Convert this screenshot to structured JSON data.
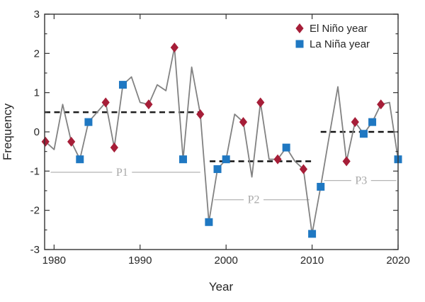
{
  "chart_data": {
    "type": "line",
    "title": "",
    "xlabel": "Year",
    "ylabel": "Frequency",
    "xlim": [
      1978.9,
      2020
    ],
    "ylim": [
      -3,
      3
    ],
    "xticks": [
      1980,
      1990,
      2000,
      2010,
      2020
    ],
    "yticks": [
      3,
      2,
      1,
      0,
      -1,
      -2,
      -3
    ],
    "y_minor_step": 0.5,
    "grid": false,
    "legend_position": "top-right-inside",
    "x": [
      1979,
      1980,
      1981,
      1982,
      1983,
      1984,
      1985,
      1986,
      1987,
      1988,
      1989,
      1990,
      1991,
      1992,
      1993,
      1994,
      1995,
      1996,
      1997,
      1998,
      1999,
      2000,
      2001,
      2002,
      2003,
      2004,
      2005,
      2006,
      2007,
      2008,
      2009,
      2010,
      2011,
      2012,
      2013,
      2014,
      2015,
      2016,
      2017,
      2018,
      2019,
      2020
    ],
    "values": [
      -0.25,
      -0.45,
      0.7,
      -0.25,
      -0.7,
      0.25,
      0.5,
      0.75,
      -0.4,
      1.2,
      1.4,
      0.75,
      0.7,
      1.2,
      1.05,
      2.15,
      -0.7,
      1.65,
      0.45,
      -2.3,
      -0.95,
      -0.7,
      0.45,
      0.25,
      -1.15,
      0.75,
      -0.7,
      -0.7,
      -0.4,
      -0.75,
      -0.95,
      -2.6,
      -1.4,
      -0.1,
      1.15,
      -0.75,
      0.25,
      -0.05,
      0.25,
      0.7,
      0.75,
      -0.7
    ],
    "el_nino_years": [
      1979,
      1982,
      1986,
      1987,
      1991,
      1994,
      1997,
      2002,
      2004,
      2006,
      2009,
      2014,
      2015,
      2018
    ],
    "la_nina_years": [
      1983,
      1984,
      1988,
      1995,
      1998,
      1999,
      2000,
      2007,
      2010,
      2011,
      2016,
      2017,
      2020
    ],
    "periods": [
      {
        "label": "P1",
        "mean": 0.5,
        "mean_from": 1978.9,
        "mean_to": 1997.0,
        "underline_y": -1.03,
        "underline_from": 1979.6,
        "underline_to": 1997.0,
        "label_x": 1987.9
      },
      {
        "label": "P2",
        "mean": -0.75,
        "mean_from": 1998.1,
        "mean_to": 2010.3,
        "underline_y": -1.73,
        "underline_from": 1998.6,
        "underline_to": 2009.7,
        "label_x": 2003.2
      },
      {
        "label": "P3",
        "mean": 0.0,
        "mean_from": 2011.0,
        "mean_to": 2020.0,
        "underline_y": -1.24,
        "underline_from": 2011.4,
        "underline_to": 2019.8,
        "label_x": 2015.7
      }
    ]
  },
  "legend": {
    "items": [
      {
        "label": "El Niño year",
        "marker": "diamond"
      },
      {
        "label": "La Niña year",
        "marker": "square"
      }
    ]
  },
  "colors": {
    "el_nino": "#a61e38",
    "la_nina": "#1f78c2",
    "line": "#828282",
    "mean_line": "#141414",
    "period_line": "#b5b5b5",
    "period_label": "#a8a8a8",
    "axis": "#333333",
    "text": "#262626"
  }
}
